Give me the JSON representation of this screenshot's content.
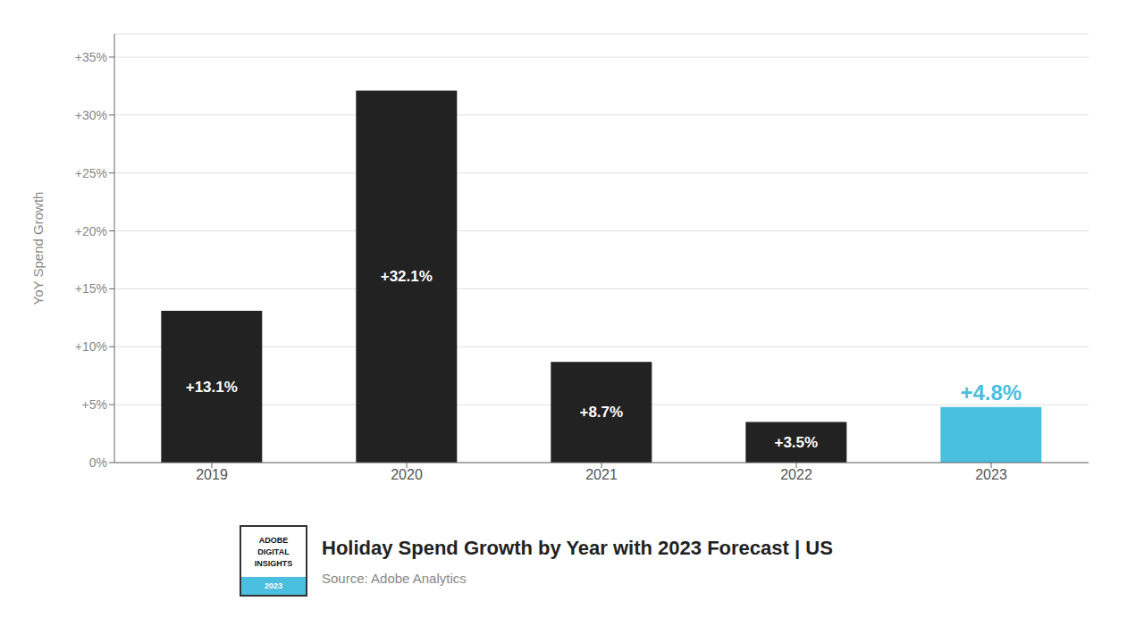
{
  "chart_data": {
    "type": "bar",
    "title": "Holiday Spend Growth by Year with 2023 Forecast | US",
    "annotations": [
      "Source: Adobe Analytics",
      "ADOBE",
      "DIGITAL",
      "INSIGHTS",
      "2023"
    ],
    "ylabel": "YoY Spend Growth",
    "categories": [
      "2019",
      "2020",
      "2021",
      "2022",
      "2023"
    ],
    "values": [
      13.1,
      32.1,
      8.7,
      3.5,
      4.8
    ],
    "value_labels": [
      "+13.1%",
      "+32.1%",
      "+8.7%",
      "+3.5%",
      "+4.8%"
    ],
    "data_labels": true,
    "colors": [
      "#222222",
      "#222222",
      "#222222",
      "#222222",
      "#4bbfe0"
    ],
    "ylim": [
      0,
      37
    ],
    "yticks": [
      {
        "value": 0,
        "label": "0%"
      },
      {
        "value": 5,
        "label": "+5%"
      },
      {
        "value": 10,
        "label": "+10%"
      },
      {
        "value": 15,
        "label": "+15%"
      },
      {
        "value": 20,
        "label": "+20%"
      },
      {
        "value": 25,
        "label": "+25%"
      },
      {
        "value": 30,
        "label": "+30%"
      },
      {
        "value": 35,
        "label": "+35%"
      }
    ],
    "grid": true
  }
}
